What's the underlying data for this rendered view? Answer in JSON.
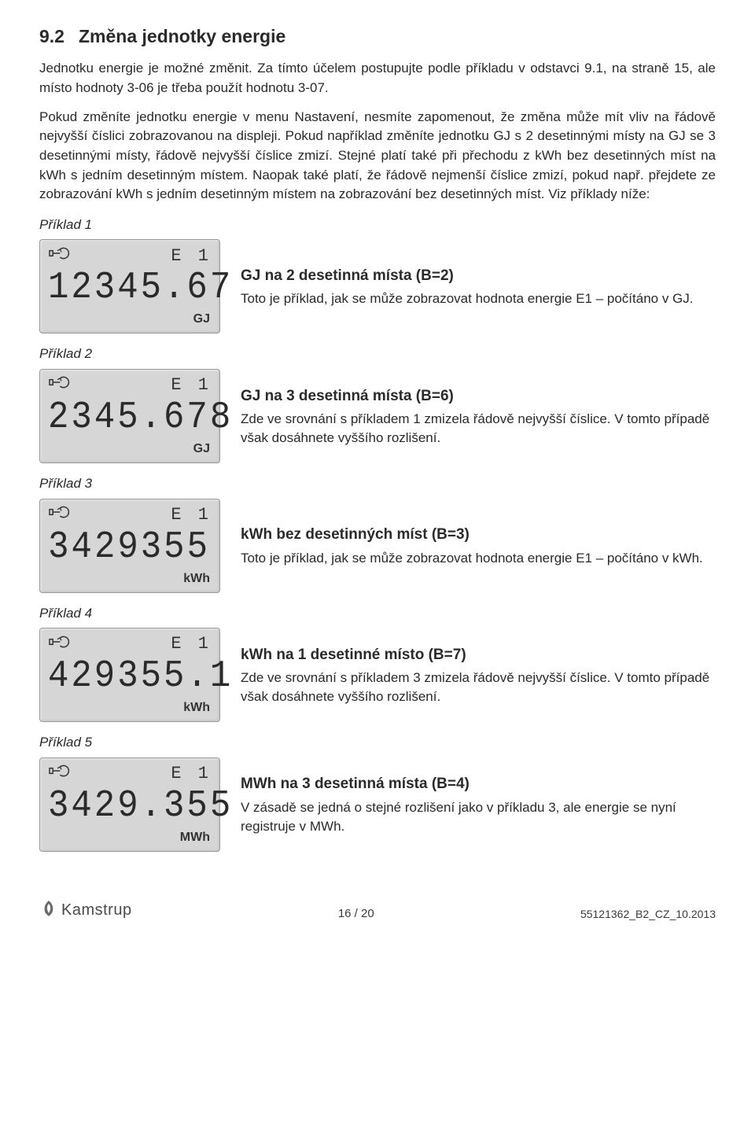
{
  "heading": {
    "number": "9.2",
    "title": "Změna jednotky energie"
  },
  "intro": "Jednotku energie je možné změnit. Za tímto účelem postupujte podle příkladu v odstavci 9.1, na straně 15, ale místo hodnoty 3-06 je třeba použít hodnotu 3-07.",
  "body": "Pokud změníte jednotku energie v menu Nastavení, nesmíte zapomenout, že změna může mít vliv na řádově nejvyšší číslici zobrazovanou na displeji. Pokud například změníte jednotku GJ s 2 desetinnými místy na GJ se 3 desetinnými místy, řádově nejvyšší číslice zmizí. Stejné platí také při přechodu z kWh bez desetinných míst na kWh s jedním desetinným místem. Naopak také platí, že řádově nejmenší číslice zmizí, pokud např. přejdete ze zobrazování kWh s jedním desetinným místem na zobrazování bez desetinných míst. Viz příklady níže:",
  "examples": [
    {
      "label": "Příklad 1",
      "e_label": "E 1",
      "digits": "12345.67",
      "unit": "GJ",
      "title": "GJ na 2 desetinná místa (B=2)",
      "desc": "Toto je příklad, jak se může zobrazovat hodnota energie E1 – počítáno v GJ."
    },
    {
      "label": "Příklad 2",
      "e_label": "E 1",
      "digits": "2345.678",
      "unit": "GJ",
      "title": "GJ na 3 desetinná místa (B=6)",
      "desc": "Zde ve srovnání s příkladem 1 zmizela řádově nejvyšší číslice. V tomto případě však dosáhnete vyššího rozlišení."
    },
    {
      "label": "Příklad 3",
      "e_label": "E 1",
      "digits": "3429355",
      "unit": "kWh",
      "title": "kWh bez desetinných míst (B=3)",
      "desc": "Toto je příklad, jak se může zobrazovat hodnota energie E1 – počítáno v kWh."
    },
    {
      "label": "Příklad 4",
      "e_label": "E 1",
      "digits": "429355.1",
      "unit": "kWh",
      "title": "kWh na 1 desetinné místo (B=7)",
      "desc": "Zde ve srovnání s příkladem 3 zmizela řádově nejvyšší číslice. V tomto případě však dosáhnete vyššího rozlišení."
    },
    {
      "label": "Příklad 5",
      "e_label": "E 1",
      "digits": "3429.355",
      "unit": "MWh",
      "title": "MWh na 3 desetinná místa (B=4)",
      "desc": "V zásadě se jedná o stejné rozlišení jako v příkladu 3, ale energie se nyní registruje v MWh."
    }
  ],
  "footer": {
    "logo_text": "Kamstrup",
    "page": "16 / 20",
    "docref": "55121362_B2_CZ_10.2013"
  },
  "colors": {
    "lcd_bg": "#d6d6d6",
    "lcd_border": "#9a9a9a",
    "text": "#2a2a2a",
    "icon": "#333333"
  }
}
